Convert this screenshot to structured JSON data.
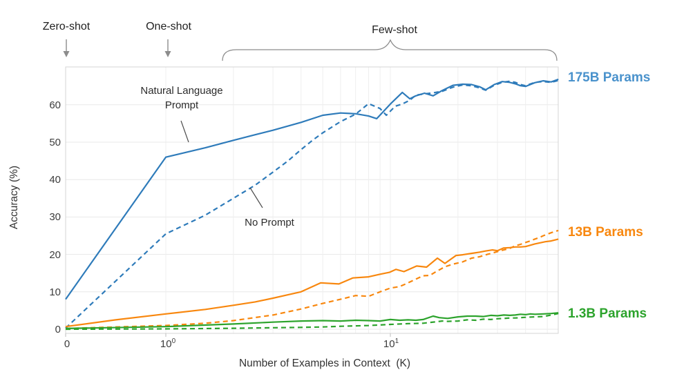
{
  "figure": {
    "annotations": {
      "zero_shot": "Zero-shot",
      "one_shot": "One-shot",
      "few_shot": "Few-shot",
      "natural_language_prompt": "Natural Language Prompt",
      "no_prompt": "No Prompt"
    },
    "axes": {
      "x_label": "Number of Examples in Context  (K)",
      "y_label": "Accuracy (%)",
      "x_ticks": [
        {
          "base": "0",
          "exp": ""
        },
        {
          "base": "10",
          "exp": "0"
        },
        {
          "base": "10",
          "exp": "1"
        }
      ],
      "y_ticks": [
        "0",
        "10",
        "20",
        "30",
        "40",
        "50",
        "60"
      ]
    },
    "series_labels": [
      {
        "text": "175B Params",
        "color": "#4a92cc"
      },
      {
        "text": "13B Params",
        "color": "#f8870e"
      },
      {
        "text": "1.3B Params",
        "color": "#2ca32c"
      }
    ]
  },
  "colors": {
    "blue_line": "#2e7bba",
    "orange_line": "#f8870e",
    "green_line": "#2ca32c",
    "grid_h": "#e8e8e8",
    "grid_v": "#efefef",
    "plot_border": "#d4d4d4",
    "brace_gray": "#8c8c8c",
    "leader_dark": "#4d4d4d"
  },
  "chart_data": {
    "type": "line",
    "title": "",
    "xlabel": "Number of Examples in Context  (K)",
    "ylabel": "Accuracy (%)",
    "xscale": "symlog (linear 0 to 1, log10 from 1 to ~56)",
    "xlim": [
      0,
      56
    ],
    "ylim": [
      -1,
      70
    ],
    "grid": true,
    "x_gridlines": [
      1,
      2,
      3,
      4,
      5,
      6,
      7,
      8,
      9,
      10,
      20,
      30,
      40,
      50
    ],
    "y_gridlines": [
      0,
      10,
      20,
      30,
      40,
      50,
      60
    ],
    "legend_position": "right-margin colored labels; solid = Natural Language Prompt, dashed = No Prompt",
    "series": [
      {
        "id": "175b-natural-language-prompt",
        "model": "175B Params",
        "prompt": "Natural Language Prompt",
        "style": "solid",
        "color": "#2e7bba",
        "points": [
          [
            0,
            8
          ],
          [
            1,
            46
          ],
          [
            1.5,
            48.5
          ],
          [
            2,
            50.5
          ],
          [
            2.5,
            52
          ],
          [
            3,
            53.2
          ],
          [
            4,
            55.3
          ],
          [
            5,
            57.2
          ],
          [
            6,
            57.8
          ],
          [
            7,
            57.6
          ],
          [
            8,
            57
          ],
          [
            8.7,
            56.3
          ],
          [
            10,
            60.2
          ],
          [
            11.3,
            63.3
          ],
          [
            12.2,
            61.6
          ],
          [
            13,
            62.4
          ],
          [
            14.2,
            63.1
          ],
          [
            15.5,
            62.4
          ],
          [
            17,
            63.8
          ],
          [
            19,
            65.2
          ],
          [
            21,
            65.5
          ],
          [
            23,
            65.4
          ],
          [
            25,
            64.8
          ],
          [
            26.6,
            64
          ],
          [
            29,
            65.4
          ],
          [
            31.5,
            66.2
          ],
          [
            34,
            66
          ],
          [
            36,
            65.6
          ],
          [
            38,
            65.1
          ],
          [
            40,
            64.9
          ],
          [
            44,
            65.9
          ],
          [
            48,
            66.4
          ],
          [
            52,
            66.1
          ],
          [
            56,
            66.8
          ]
        ]
      },
      {
        "id": "175b-no-prompt",
        "model": "175B Params",
        "prompt": "No Prompt",
        "style": "dashed",
        "color": "#2e7bba",
        "points": [
          [
            0,
            0.3
          ],
          [
            1,
            25.5
          ],
          [
            1.5,
            30.5
          ],
          [
            2,
            35
          ],
          [
            2.5,
            38.5
          ],
          [
            3,
            42
          ],
          [
            3.5,
            45
          ],
          [
            4,
            48
          ],
          [
            4.5,
            50.5
          ],
          [
            5,
            52.5
          ],
          [
            6,
            55.5
          ],
          [
            7,
            57.5
          ],
          [
            8,
            60.3
          ],
          [
            9,
            59
          ],
          [
            9.6,
            57.2
          ],
          [
            10.5,
            59.6
          ],
          [
            11.3,
            60.2
          ],
          [
            12.2,
            61.2
          ],
          [
            13,
            62.6
          ],
          [
            14.2,
            62.9
          ],
          [
            15.5,
            63.2
          ],
          [
            17,
            63.6
          ],
          [
            19,
            64.7
          ],
          [
            21,
            65.3
          ],
          [
            23,
            65.1
          ],
          [
            25,
            64.5
          ],
          [
            26.6,
            63.9
          ],
          [
            29,
            65.2
          ],
          [
            31.5,
            66
          ],
          [
            34,
            66.3
          ],
          [
            36,
            66
          ],
          [
            38,
            65.4
          ],
          [
            40,
            65.1
          ],
          [
            44,
            66
          ],
          [
            48,
            66.2
          ],
          [
            52,
            66
          ],
          [
            56,
            66.5
          ]
        ]
      },
      {
        "id": "13b-natural-language-prompt",
        "model": "13B Params",
        "prompt": "Natural Language Prompt",
        "style": "solid",
        "color": "#f8870e",
        "points": [
          [
            0,
            0.7
          ],
          [
            0.5,
            2.5
          ],
          [
            1,
            4.1
          ],
          [
            1.5,
            5.3
          ],
          [
            2,
            6.4
          ],
          [
            2.5,
            7.3
          ],
          [
            3,
            8.3
          ],
          [
            3.5,
            9.2
          ],
          [
            4,
            10
          ],
          [
            4.9,
            12.4
          ],
          [
            5.9,
            12.1
          ],
          [
            6.8,
            13.7
          ],
          [
            8,
            14
          ],
          [
            9,
            14.7
          ],
          [
            9.9,
            15.2
          ],
          [
            10.6,
            16
          ],
          [
            11.5,
            15.4
          ],
          [
            13.1,
            16.9
          ],
          [
            14.5,
            16.6
          ],
          [
            16.2,
            19
          ],
          [
            17.5,
            17.6
          ],
          [
            19.6,
            19.7
          ],
          [
            21,
            19.9
          ],
          [
            23.1,
            20.3
          ],
          [
            25,
            20.6
          ],
          [
            26.5,
            20.9
          ],
          [
            28.5,
            21.2
          ],
          [
            30,
            21
          ],
          [
            31.9,
            21.7
          ],
          [
            34,
            21.8
          ],
          [
            36,
            22
          ],
          [
            38,
            22
          ],
          [
            40,
            22.1
          ],
          [
            44,
            22.8
          ],
          [
            49,
            23.4
          ],
          [
            52,
            23.6
          ],
          [
            56,
            24.1
          ]
        ]
      },
      {
        "id": "13b-no-prompt",
        "model": "13B Params",
        "prompt": "No Prompt",
        "style": "dashed",
        "color": "#f8870e",
        "points": [
          [
            0,
            0.2
          ],
          [
            1,
            1
          ],
          [
            1.5,
            1.6
          ],
          [
            2,
            2.3
          ],
          [
            3,
            3.8
          ],
          [
            4,
            5.4
          ],
          [
            5,
            6.9
          ],
          [
            6,
            8
          ],
          [
            7,
            9
          ],
          [
            8,
            8.8
          ],
          [
            9,
            10
          ],
          [
            10,
            11
          ],
          [
            11,
            11.4
          ],
          [
            12,
            12.4
          ],
          [
            13,
            13.4
          ],
          [
            14,
            14.3
          ],
          [
            15,
            14.4
          ],
          [
            16,
            15.4
          ],
          [
            17.5,
            16.7
          ],
          [
            19,
            17.4
          ],
          [
            21,
            18
          ],
          [
            23,
            19
          ],
          [
            25,
            19.4
          ],
          [
            27,
            20
          ],
          [
            29,
            20.5
          ],
          [
            31,
            21
          ],
          [
            34,
            21.6
          ],
          [
            36,
            22.3
          ],
          [
            38,
            22.7
          ],
          [
            40,
            23.2
          ],
          [
            42,
            23.6
          ],
          [
            44,
            24.1
          ],
          [
            46,
            24.5
          ],
          [
            48,
            25
          ],
          [
            50,
            25.4
          ],
          [
            52,
            25.8
          ],
          [
            54,
            26.1
          ],
          [
            56,
            26.4
          ]
        ]
      },
      {
        "id": "1.3b-natural-language-prompt",
        "model": "1.3B Params",
        "prompt": "Natural Language Prompt",
        "style": "solid",
        "color": "#2ca32c",
        "points": [
          [
            0,
            0.2
          ],
          [
            1,
            0.7
          ],
          [
            2,
            1.4
          ],
          [
            3,
            1.9
          ],
          [
            4,
            2.2
          ],
          [
            5,
            2.3
          ],
          [
            6,
            2.2
          ],
          [
            7,
            2.4
          ],
          [
            8,
            2.3
          ],
          [
            9,
            2.2
          ],
          [
            10,
            2.6
          ],
          [
            11,
            2.4
          ],
          [
            12,
            2.5
          ],
          [
            13,
            2.4
          ],
          [
            14,
            2.6
          ],
          [
            15.5,
            3.5
          ],
          [
            16.5,
            3.1
          ],
          [
            18,
            2.9
          ],
          [
            20,
            3.3
          ],
          [
            22,
            3.5
          ],
          [
            24,
            3.5
          ],
          [
            26,
            3.4
          ],
          [
            28,
            3.7
          ],
          [
            30,
            3.6
          ],
          [
            32,
            3.8
          ],
          [
            34,
            3.7
          ],
          [
            36,
            3.8
          ],
          [
            38,
            4
          ],
          [
            40,
            3.9
          ],
          [
            42,
            4.1
          ],
          [
            44,
            4
          ],
          [
            48,
            4.1
          ],
          [
            52,
            4.2
          ],
          [
            56,
            4.4
          ]
        ]
      },
      {
        "id": "1.3b-no-prompt",
        "model": "1.3B Params",
        "prompt": "No Prompt",
        "style": "dashed",
        "color": "#2ca32c",
        "points": [
          [
            0,
            0
          ],
          [
            1,
            0.1
          ],
          [
            2,
            0.25
          ],
          [
            3,
            0.4
          ],
          [
            4,
            0.5
          ],
          [
            5,
            0.6
          ],
          [
            6,
            0.8
          ],
          [
            8,
            1
          ],
          [
            10,
            1.3
          ],
          [
            12,
            1.5
          ],
          [
            14,
            1.6
          ],
          [
            16,
            2
          ],
          [
            17,
            2.2
          ],
          [
            18,
            2.1
          ],
          [
            20,
            2.2
          ],
          [
            22,
            2.5
          ],
          [
            24,
            2.4
          ],
          [
            26,
            2.7
          ],
          [
            28,
            2.6
          ],
          [
            30,
            2.8
          ],
          [
            32,
            2.9
          ],
          [
            34,
            3
          ],
          [
            36,
            3
          ],
          [
            38,
            3.1
          ],
          [
            40,
            3.2
          ],
          [
            44,
            3.3
          ],
          [
            48,
            3.4
          ],
          [
            52,
            3.8
          ],
          [
            56,
            4.2
          ]
        ]
      }
    ]
  }
}
